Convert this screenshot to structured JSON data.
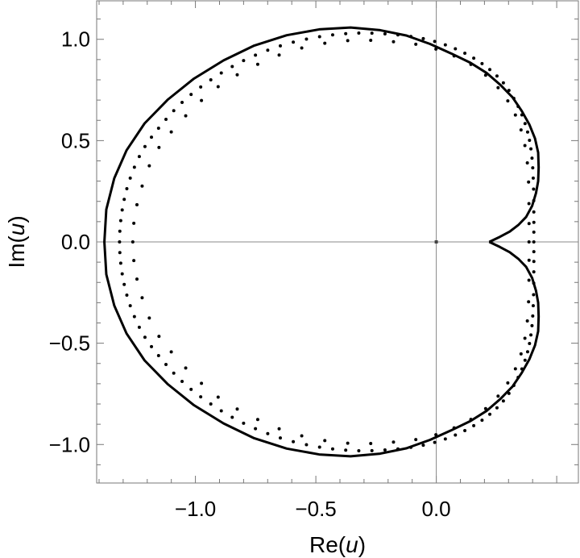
{
  "chart_data": {
    "type": "scatter",
    "title": "",
    "xlabel": {
      "prefix": "Re(",
      "var": "u",
      "suffix": ")"
    },
    "ylabel": {
      "prefix": "Im(",
      "var": "u",
      "suffix": ")"
    },
    "xlim": [
      -1.41,
      0.59
    ],
    "ylim": [
      -1.19,
      1.19
    ],
    "xticks": [
      -1.0,
      -0.5,
      0.0
    ],
    "xtick_labels": [
      "−1.0",
      "−0.5",
      "0.0"
    ],
    "yticks": [
      -1.0,
      -0.5,
      0.0,
      0.5,
      1.0
    ],
    "ytick_labels": [
      "−1.0",
      "−0.5",
      "0.0",
      "0.5",
      "1.0"
    ],
    "grid": false,
    "origin_lines": true,
    "series": [
      {
        "kind": "line",
        "color": "#000000",
        "points": [
          [
            0.22,
            0.0
          ],
          [
            0.264,
            0.025
          ],
          [
            0.305,
            0.051
          ],
          [
            0.342,
            0.085
          ],
          [
            0.373,
            0.123
          ],
          [
            0.398,
            0.178
          ],
          [
            0.414,
            0.241
          ],
          [
            0.423,
            0.3
          ],
          [
            0.425,
            0.368
          ],
          [
            0.423,
            0.441
          ],
          [
            0.41,
            0.51
          ],
          [
            0.387,
            0.578
          ],
          [
            0.355,
            0.646
          ],
          [
            0.317,
            0.713
          ],
          [
            0.268,
            0.773
          ],
          [
            0.21,
            0.833
          ],
          [
            0.142,
            0.884
          ],
          [
            0.062,
            0.93
          ],
          [
            -0.026,
            0.977
          ],
          [
            -0.125,
            1.019
          ],
          [
            -0.233,
            1.045
          ],
          [
            -0.356,
            1.058
          ],
          [
            -0.486,
            1.049
          ],
          [
            -0.621,
            1.02
          ],
          [
            -0.756,
            0.969
          ],
          [
            -0.883,
            0.896
          ],
          [
            -1.006,
            0.806
          ],
          [
            -1.114,
            0.703
          ],
          [
            -1.211,
            0.585
          ],
          [
            -1.286,
            0.452
          ],
          [
            -1.337,
            0.314
          ],
          [
            -1.37,
            0.16
          ],
          [
            -1.378,
            0.0
          ],
          [
            -1.37,
            -0.16
          ],
          [
            -1.337,
            -0.314
          ],
          [
            -1.286,
            -0.452
          ],
          [
            -1.211,
            -0.585
          ],
          [
            -1.114,
            -0.703
          ],
          [
            -1.006,
            -0.806
          ],
          [
            -0.883,
            -0.896
          ],
          [
            -0.756,
            -0.969
          ],
          [
            -0.621,
            -1.02
          ],
          [
            -0.486,
            -1.049
          ],
          [
            -0.356,
            -1.058
          ],
          [
            -0.233,
            -1.045
          ],
          [
            -0.125,
            -1.019
          ],
          [
            -0.026,
            -0.977
          ],
          [
            0.062,
            -0.93
          ],
          [
            0.142,
            -0.884
          ],
          [
            0.21,
            -0.833
          ],
          [
            0.268,
            -0.773
          ],
          [
            0.317,
            -0.713
          ],
          [
            0.355,
            -0.646
          ],
          [
            0.387,
            -0.578
          ],
          [
            0.41,
            -0.51
          ],
          [
            0.423,
            -0.441
          ],
          [
            0.425,
            -0.368
          ],
          [
            0.423,
            -0.3
          ],
          [
            0.414,
            -0.241
          ],
          [
            0.398,
            -0.178
          ],
          [
            0.373,
            -0.123
          ],
          [
            0.342,
            -0.085
          ],
          [
            0.305,
            -0.051
          ],
          [
            0.264,
            -0.025
          ],
          [
            0.22,
            0.0
          ]
        ]
      },
      {
        "kind": "dots",
        "color": "#000000",
        "radius_hint": "small",
        "anchors": [
          [
            0.405,
            0.0
          ],
          [
            0.405,
            0.14
          ],
          [
            0.403,
            0.3
          ],
          [
            0.395,
            0.44
          ],
          [
            0.375,
            0.56
          ],
          [
            0.335,
            0.68
          ],
          [
            0.275,
            0.79
          ],
          [
            0.19,
            0.88
          ],
          [
            0.085,
            0.95
          ],
          [
            -0.04,
            1.0
          ],
          [
            -0.19,
            1.025
          ],
          [
            -0.345,
            1.03
          ],
          [
            -0.5,
            1.01
          ],
          [
            -0.655,
            0.965
          ],
          [
            -0.8,
            0.895
          ],
          [
            -0.93,
            0.805
          ],
          [
            -1.045,
            0.7
          ],
          [
            -1.14,
            0.58
          ],
          [
            -1.22,
            0.45
          ],
          [
            -1.275,
            0.3
          ],
          [
            -1.305,
            0.15
          ],
          [
            -1.315,
            0.0
          ]
        ],
        "count": 120
      },
      {
        "kind": "dots",
        "color": "#000000",
        "radius_hint": "small",
        "anchors": [
          [
            0.385,
            0.0
          ],
          [
            0.385,
            0.14
          ],
          [
            0.383,
            0.3
          ],
          [
            0.373,
            0.44
          ],
          [
            0.35,
            0.56
          ],
          [
            0.31,
            0.67
          ],
          [
            0.25,
            0.77
          ],
          [
            0.165,
            0.86
          ],
          [
            0.06,
            0.925
          ],
          [
            -0.06,
            0.97
          ],
          [
            -0.2,
            0.99
          ],
          [
            -0.345,
            0.995
          ],
          [
            -0.49,
            0.975
          ],
          [
            -0.635,
            0.93
          ],
          [
            -0.77,
            0.86
          ],
          [
            -0.895,
            0.775
          ],
          [
            -1.0,
            0.67
          ],
          [
            -1.095,
            0.55
          ],
          [
            -1.17,
            0.43
          ],
          [
            -1.22,
            0.28
          ],
          [
            -1.25,
            0.14
          ],
          [
            -1.26,
            0.0
          ]
        ],
        "count": 64
      }
    ]
  }
}
